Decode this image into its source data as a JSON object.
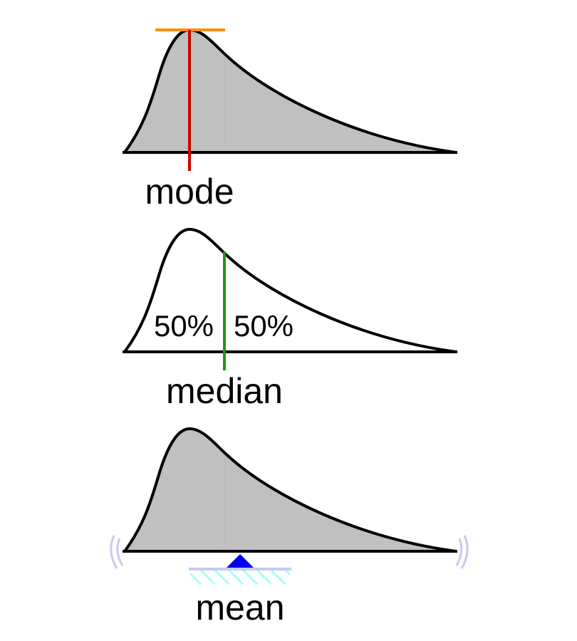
{
  "panels": {
    "mode": {
      "label": "mode"
    },
    "median": {
      "label": "median",
      "left_percent": "50%",
      "right_percent": "50%"
    },
    "mean": {
      "label": "mean"
    }
  },
  "colors": {
    "fill": "#c0c0c0",
    "outline": "#000000",
    "mode_marker": "#cc0000",
    "mode_tangent": "#ff8c00",
    "median_marker": "#1a9a1a",
    "median_left_hatch": "#cccc33",
    "median_right_hatch": "#66c2c2",
    "mean_fulcrum": "#0000ee",
    "mean_base": "#c8c8f0",
    "mean_base_hatch": "#99ffff",
    "wobble": "#c8c8f0"
  },
  "icons": {
    "fulcrum": "triangle-fulcrum-icon",
    "wobble": "wobble-arc-icon"
  }
}
